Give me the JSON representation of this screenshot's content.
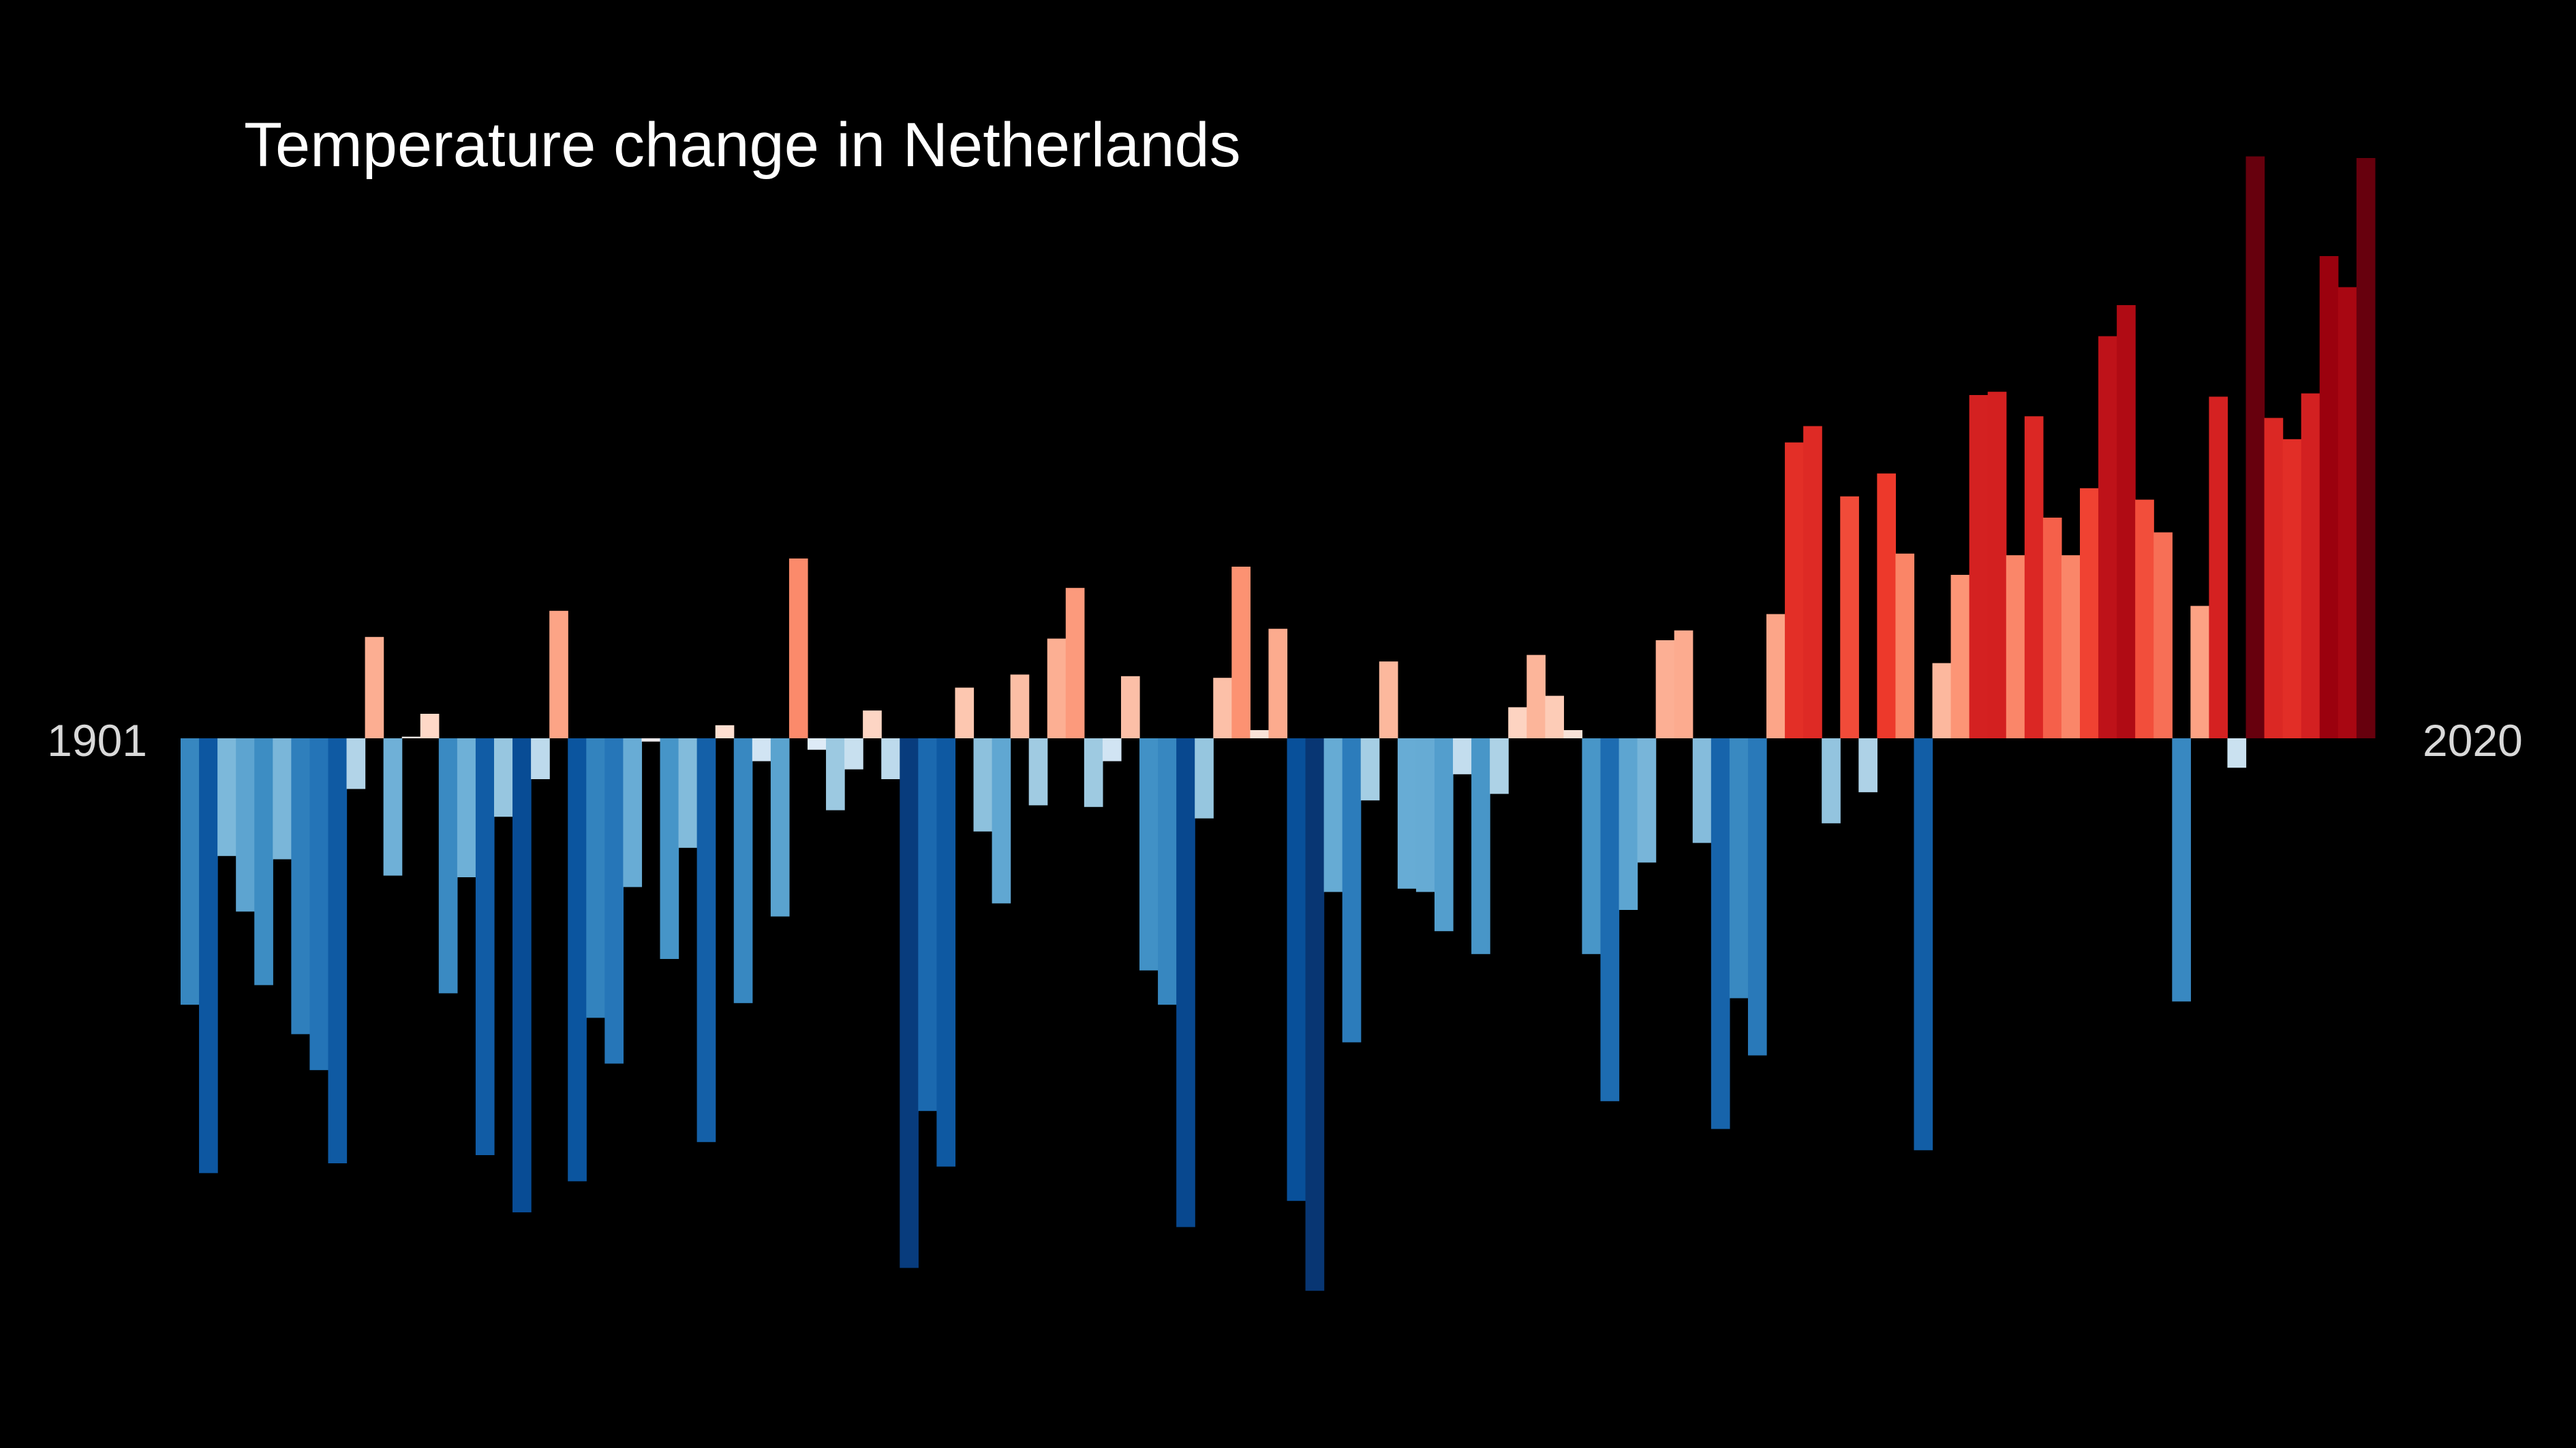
{
  "chart_data": {
    "type": "bar",
    "title": "Temperature change in Netherlands",
    "xlabel": "",
    "ylabel": "",
    "start_label": "1901",
    "end_label": "2020",
    "x_start": 1901,
    "x_end": 2020,
    "units": "relative anomaly (bar height, negative = below average)",
    "ylim": [
      -3.4,
      3.6
    ],
    "grid": false,
    "legend": "none",
    "colors": {
      "background": "#000000",
      "title": "#ffffff",
      "year_labels": "#d9d9d9"
    },
    "values": [
      -1.63,
      -2.66,
      -0.72,
      -1.06,
      -1.51,
      -0.74,
      -1.81,
      -2.03,
      -2.6,
      -0.31,
      0.62,
      -0.84,
      0.01,
      0.15,
      -1.56,
      -0.85,
      -2.55,
      -0.48,
      -2.9,
      -0.25,
      0.78,
      -2.71,
      -1.71,
      -1.99,
      -0.91,
      -0.02,
      -1.35,
      -0.67,
      -2.47,
      0.08,
      -1.62,
      -0.14,
      -1.09,
      1.1,
      -0.07,
      -0.44,
      -0.19,
      0.17,
      -0.25,
      -3.24,
      -2.28,
      -2.62,
      0.31,
      -0.57,
      -1.01,
      0.39,
      -0.41,
      0.61,
      0.92,
      -0.42,
      -0.14,
      0.38,
      -1.42,
      -1.63,
      -2.99,
      -0.49,
      0.37,
      1.05,
      0.05,
      0.67,
      -2.83,
      -3.38,
      -0.94,
      -1.86,
      -0.38,
      0.47,
      -0.92,
      -0.94,
      -1.18,
      -0.22,
      -1.32,
      -0.34,
      0.19,
      0.51,
      0.26,
      0.05,
      -1.32,
      -2.22,
      -1.05,
      -0.76,
      0.6,
      0.66,
      -0.64,
      -2.39,
      -1.59,
      -1.94,
      0.76,
      1.81,
      1.91,
      -0.52,
      1.48,
      -0.33,
      1.62,
      1.13,
      -2.52,
      0.46,
      1.0,
      2.1,
      2.12,
      1.12,
      1.97,
      1.35,
      1.12,
      1.53,
      2.46,
      2.65,
      1.46,
      1.26,
      -1.61,
      0.81,
      2.09,
      -0.18,
      3.56,
      1.96,
      1.83,
      2.11,
      2.95,
      2.76,
      3.55,
      0.0
    ]
  }
}
